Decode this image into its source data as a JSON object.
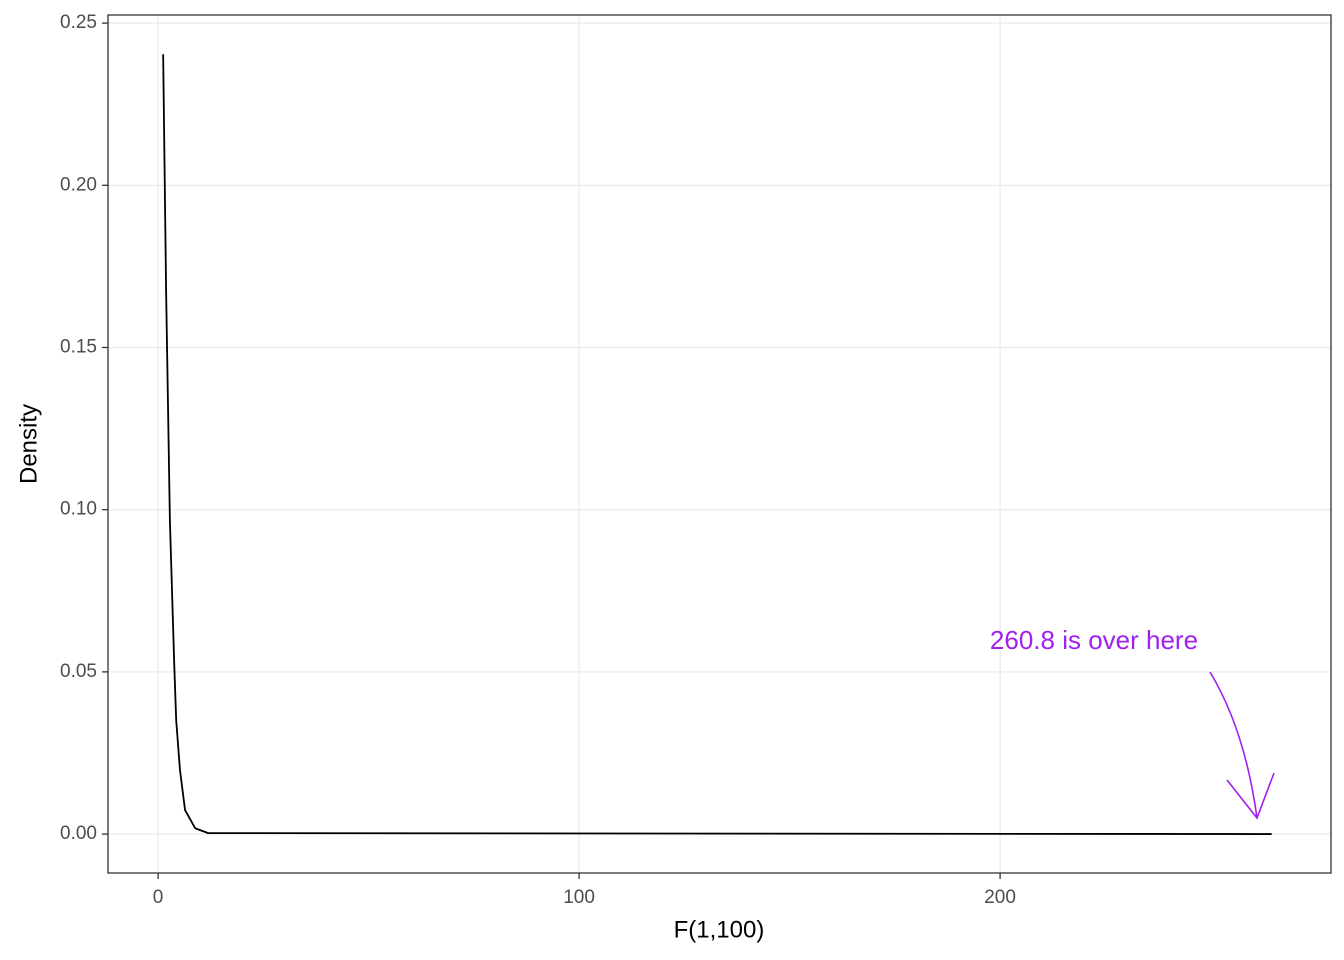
{
  "chart_data": {
    "type": "line",
    "x_label": "F(1,100)",
    "y_label": "Density",
    "annotation": "260.8 is over here",
    "annotation_color": "#a020f0",
    "x": [
      1.2,
      1.9,
      2.8,
      3.8,
      4.3,
      5.2,
      6.4,
      8.8,
      11.9,
      264.5
    ],
    "series": [
      {
        "name": "density",
        "color": "#000000",
        "values": [
          0.2404,
          0.1677,
          0.0968,
          0.0536,
          0.035,
          0.0197,
          0.0074,
          0.0018,
          0.0003,
          0.0
        ]
      }
    ],
    "xlim": [
      -11.9,
      278.6
    ],
    "ylim": [
      -0.012,
      0.2525
    ],
    "xticks": [
      0,
      100,
      200
    ],
    "yticks": [
      {
        "value": 0,
        "label": "0.00"
      },
      {
        "value": 0.05,
        "label": "0.05"
      },
      {
        "value": 0.1,
        "label": "0.10"
      },
      {
        "value": 0.15,
        "label": "0.15"
      },
      {
        "value": 0.2,
        "label": "0.20"
      },
      {
        "value": 0.25,
        "label": "0.25"
      }
    ],
    "grid": true
  }
}
